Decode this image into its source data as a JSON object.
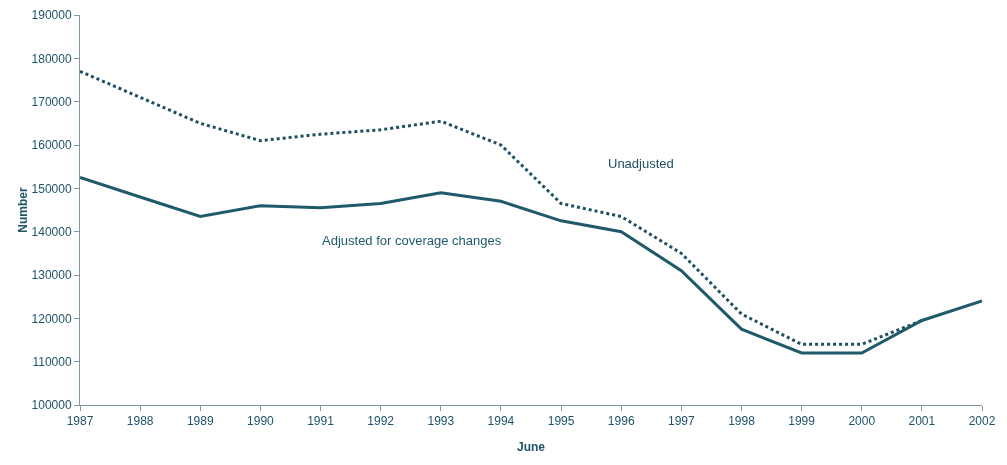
{
  "chart_data": {
    "type": "line",
    "xlabel": "June",
    "ylabel": "Number",
    "x": [
      1987,
      1988,
      1989,
      1990,
      1991,
      1992,
      1993,
      1994,
      1995,
      1996,
      1997,
      1998,
      1999,
      2000,
      2001,
      2002
    ],
    "series": [
      {
        "name": "Unadjusted",
        "color": "#1f4f60",
        "line_style": "dotted",
        "values": [
          177000,
          171000,
          165000,
          161000,
          162500,
          163500,
          165500,
          160000,
          146500,
          143500,
          135000,
          121000,
          114000,
          114000,
          119500,
          null
        ]
      },
      {
        "name": "Adjusted for coverage changes",
        "color": "#1f5a6b",
        "line_style": "solid",
        "values": [
          152500,
          148000,
          143500,
          146000,
          145500,
          146500,
          149000,
          147000,
          142500,
          140000,
          131000,
          117500,
          112000,
          112000,
          119500,
          124000
        ]
      }
    ],
    "xlim": [
      1987,
      2002
    ],
    "xticks": [
      1987,
      1988,
      1989,
      1990,
      1991,
      1992,
      1993,
      1994,
      1995,
      1996,
      1997,
      1998,
      1999,
      2000,
      2001,
      2002
    ],
    "ylim": [
      100000,
      190000
    ],
    "yticks": [
      100000,
      110000,
      120000,
      130000,
      140000,
      150000,
      160000,
      170000,
      180000,
      190000
    ],
    "grid": false,
    "legend": false,
    "marker": "none"
  }
}
